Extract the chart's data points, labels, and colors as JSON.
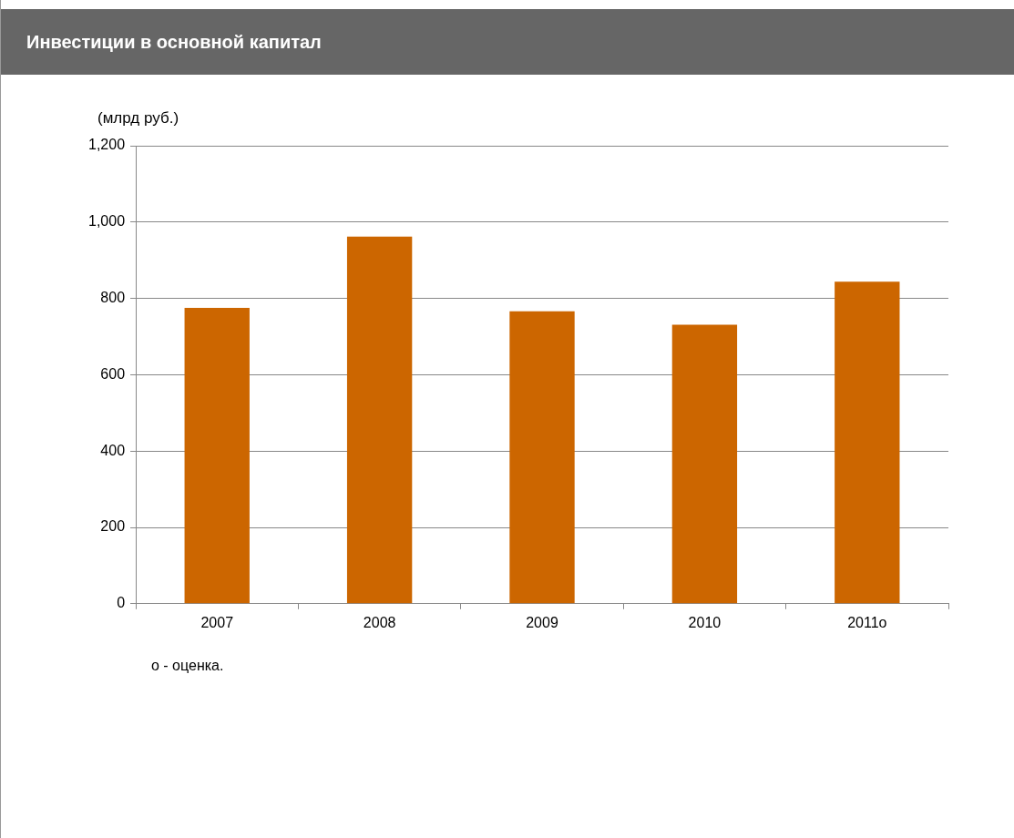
{
  "chart_data": {
    "type": "bar",
    "title": "Инвестиции в основной капитал",
    "ylabel": "(млрд руб.)",
    "categories": [
      "2007",
      "2008",
      "2009",
      "2010",
      "2011о"
    ],
    "values": [
      775,
      962,
      766,
      731,
      844
    ],
    "color": "#cc6600",
    "ylim": [
      0,
      1200
    ],
    "yticks": [
      {
        "value": 0,
        "label": "0"
      },
      {
        "value": 200,
        "label": "200"
      },
      {
        "value": 400,
        "label": "400"
      },
      {
        "value": 600,
        "label": "600"
      },
      {
        "value": 800,
        "label": "800"
      },
      {
        "value": 1000,
        "label": "1,000"
      },
      {
        "value": 1200,
        "label": "1,200"
      }
    ],
    "grid": "y",
    "legend": false,
    "annotations": [
      "о - оценка."
    ]
  }
}
